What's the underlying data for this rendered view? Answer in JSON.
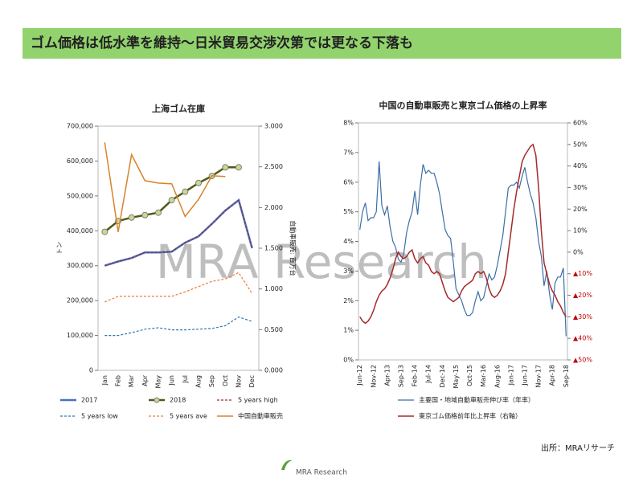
{
  "header": {
    "title": "ゴム価格は低水準を維持～日米貿易交渉次第では更なる下落も"
  },
  "watermark": "MRA Research",
  "source": "出所：MRAリサーチ",
  "logo": "MRA Research",
  "chart_data": [
    {
      "type": "line",
      "title": "上海ゴム在庫",
      "y_label": "トン",
      "y2_label": "自動車販売: 百万台",
      "categories": [
        "Jan",
        "Feb",
        "Mar",
        "Apr",
        "May",
        "Jun",
        "Jul",
        "Aug",
        "Sep",
        "Oct",
        "Nov",
        "Dec"
      ],
      "ylim": [
        0,
        700000
      ],
      "yticks": [
        0,
        {
          "value": 100000,
          "label": "100,000"
        },
        {
          "value": 200000,
          "label": "200,000"
        },
        {
          "value": 300000,
          "label": "300,000"
        },
        {
          "value": 400000,
          "label": "400,000"
        },
        {
          "value": 500000,
          "label": "500,000"
        },
        {
          "value": 600000,
          "label": "600,000"
        },
        {
          "value": 700000,
          "label": "700,000"
        }
      ],
      "y2lim": [
        0,
        3
      ],
      "y2ticks": [
        {
          "value": 0,
          "label": "0.000"
        },
        {
          "value": 0.5,
          "label": "0.500"
        },
        {
          "value": 1,
          "label": "1.000"
        },
        {
          "value": 1.5,
          "label": "1.500"
        },
        {
          "value": 2,
          "label": "2.000"
        },
        {
          "value": 2.5,
          "label": "2.500"
        },
        {
          "value": 3,
          "label": "3.000"
        }
      ],
      "series": [
        {
          "name": "2017",
          "color": "#4472c4",
          "width": 2.5,
          "values": [
            300000,
            312000,
            322000,
            338000,
            338000,
            340000,
            366000,
            384000,
            420000,
            458000,
            488000,
            350000
          ]
        },
        {
          "name": "2018",
          "color": "#4f5a16",
          "width": 2.5,
          "marker": true,
          "values": [
            397000,
            428000,
            438000,
            445000,
            452000,
            488000,
            512000,
            537000,
            557000,
            582000,
            582000,
            null
          ]
        },
        {
          "name": "5 years high",
          "color": "#9b2c2c",
          "dash": true,
          "width": 1.2,
          "values": [
            300000,
            312000,
            322000,
            338000,
            338000,
            340000,
            366000,
            384000,
            420000,
            458000,
            488000,
            350000
          ]
        },
        {
          "name": "5 years low",
          "color": "#2e75b6",
          "dash": true,
          "width": 1.2,
          "values": [
            100000,
            100000,
            108000,
            118000,
            122000,
            116000,
            116000,
            118000,
            120000,
            128000,
            153000,
            140000
          ]
        },
        {
          "name": "5 years ave",
          "color": "#ed7d31",
          "dash": true,
          "width": 1.2,
          "values": [
            196000,
            212000,
            212000,
            212000,
            212000,
            212000,
            225000,
            240000,
            255000,
            262000,
            280000,
            220000
          ]
        },
        {
          "name": "中国自動車販売",
          "color": "#d9822b",
          "width": 1.5,
          "axis": "y2",
          "values": [
            2.8,
            1.7,
            2.65,
            2.33,
            2.3,
            2.29,
            1.89,
            2.1,
            2.39,
            2.38,
            null,
            null
          ]
        }
      ]
    },
    {
      "type": "line",
      "title": "中国の自動車販売と東京ゴム価格の上昇率",
      "categories": [
        "Jun-12",
        null,
        null,
        null,
        null,
        "Nov-12",
        null,
        null,
        null,
        null,
        "Apr-13",
        null,
        null,
        null,
        null,
        "Sep-13",
        null,
        null,
        null,
        null,
        "Feb-14",
        null,
        null,
        null,
        null,
        "Jul-14",
        null,
        null,
        null,
        null,
        "Dec-14",
        null,
        null,
        null,
        null,
        "May-15",
        null,
        null,
        null,
        null,
        "Oct-15",
        null,
        null,
        null,
        null,
        "Mar-16",
        null,
        null,
        null,
        null,
        "Aug-16",
        null,
        null,
        null,
        null,
        "Jan-17",
        null,
        null,
        null,
        null,
        "Jun-17",
        null,
        null,
        null,
        null,
        "Nov-17",
        null,
        null,
        null,
        null,
        "Apr-18",
        null,
        null,
        null,
        null,
        "Sep-18"
      ],
      "ylim": [
        0,
        8
      ],
      "yticks": [
        {
          "value": 0,
          "label": "0%"
        },
        {
          "value": 1,
          "label": "1%"
        },
        {
          "value": 2,
          "label": "2%"
        },
        {
          "value": 3,
          "label": "3%"
        },
        {
          "value": 4,
          "label": "4%"
        },
        {
          "value": 5,
          "label": "5%"
        },
        {
          "value": 6,
          "label": "6%"
        },
        {
          "value": 7,
          "label": "7%"
        },
        {
          "value": 8,
          "label": "8%"
        }
      ],
      "y2lim": [
        -50,
        60
      ],
      "y2ticks": [
        {
          "value": -50,
          "label": "▲50%"
        },
        {
          "value": -40,
          "label": "▲40%"
        },
        {
          "value": -30,
          "label": "▲30%"
        },
        {
          "value": -20,
          "label": "▲20%"
        },
        {
          "value": -10,
          "label": "▲10%"
        },
        {
          "value": 0,
          "label": "0%"
        },
        {
          "value": 10,
          "label": "10%"
        },
        {
          "value": 20,
          "label": "20%"
        },
        {
          "value": 30,
          "label": "30%"
        },
        {
          "value": 40,
          "label": "40%"
        },
        {
          "value": 50,
          "label": "50%"
        },
        {
          "value": 60,
          "label": "60%"
        }
      ],
      "series": [
        {
          "name": "主要国・地域自動車販売伸び率（年率）",
          "color": "#3c6ea5",
          "width": 1.2,
          "values": [
            4.4,
            5.0,
            5.3,
            4.7,
            4.8,
            4.8,
            5.0,
            6.7,
            5.2,
            4.9,
            5.2,
            4.5,
            4.0,
            3.8,
            3.4,
            3.3,
            3.6,
            4.3,
            4.7,
            5.0,
            5.7,
            4.9,
            5.9,
            6.6,
            6.3,
            6.4,
            6.3,
            6.3,
            6.0,
            5.6,
            5.0,
            4.4,
            4.2,
            4.1,
            3.3,
            2.4,
            2.2,
            2.0,
            1.7,
            1.5,
            1.5,
            1.6,
            2.0,
            2.3,
            2.0,
            2.1,
            2.5,
            2.9,
            2.7,
            2.8,
            3.2,
            3.7,
            4.2,
            5.0,
            5.8,
            5.9,
            5.9,
            6.0,
            5.8,
            6.2,
            6.5,
            6.0,
            5.6,
            5.3,
            4.8,
            4.0,
            3.5,
            2.5,
            3.0,
            2.2,
            1.7,
            2.6,
            2.8,
            2.8,
            3.1,
            0.8
          ]
        },
        {
          "name": "東京ゴム価格前年比上昇率（右軸）",
          "color": "#a52a2a",
          "width": 1.5,
          "axis": "y2",
          "values": [
            -30,
            -32,
            -33,
            -32,
            -30,
            -27,
            -23,
            -20,
            -18,
            -17,
            -15,
            -12,
            -8,
            -3,
            0,
            -2,
            -3,
            -2,
            0,
            1,
            -3,
            -5,
            -3,
            -2,
            -5,
            -6,
            -9,
            -10,
            -9,
            -10,
            -14,
            -18,
            -21,
            -22,
            -23,
            -22,
            -21,
            -18,
            -16,
            -15,
            -14,
            -13,
            -10,
            -9,
            -10,
            -9,
            -12,
            -17,
            -20,
            -21,
            -20,
            -18,
            -15,
            -10,
            0,
            10,
            20,
            28,
            35,
            42,
            45,
            47,
            49,
            50,
            45,
            30,
            10,
            -5,
            -10,
            -15,
            -18,
            -20,
            -23,
            -25,
            -28,
            -30
          ]
        }
      ]
    }
  ]
}
